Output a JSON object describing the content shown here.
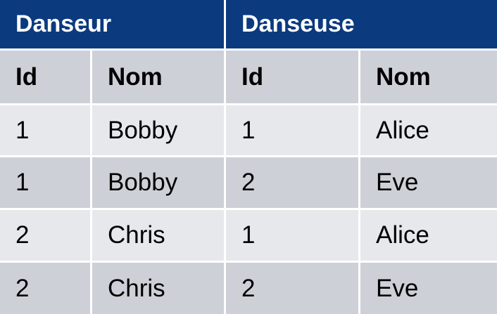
{
  "table": {
    "groups": [
      "Danseur",
      "Danseuse"
    ],
    "columns": [
      "Id",
      "Nom",
      "Id",
      "Nom"
    ],
    "rows": [
      [
        "1",
        "Bobby",
        "1",
        "Alice"
      ],
      [
        "1",
        "Bobby",
        "2",
        "Eve"
      ],
      [
        "2",
        "Chris",
        "1",
        "Alice"
      ],
      [
        "2",
        "Chris",
        "2",
        "Eve"
      ]
    ]
  },
  "colors": {
    "group_header_bg": "#0b3a7e",
    "group_header_text": "#ffffff",
    "column_header_bg": "#cdd0d6",
    "row_light_bg": "#e7e8eb",
    "row_dark_bg": "#cdd0d6"
  }
}
